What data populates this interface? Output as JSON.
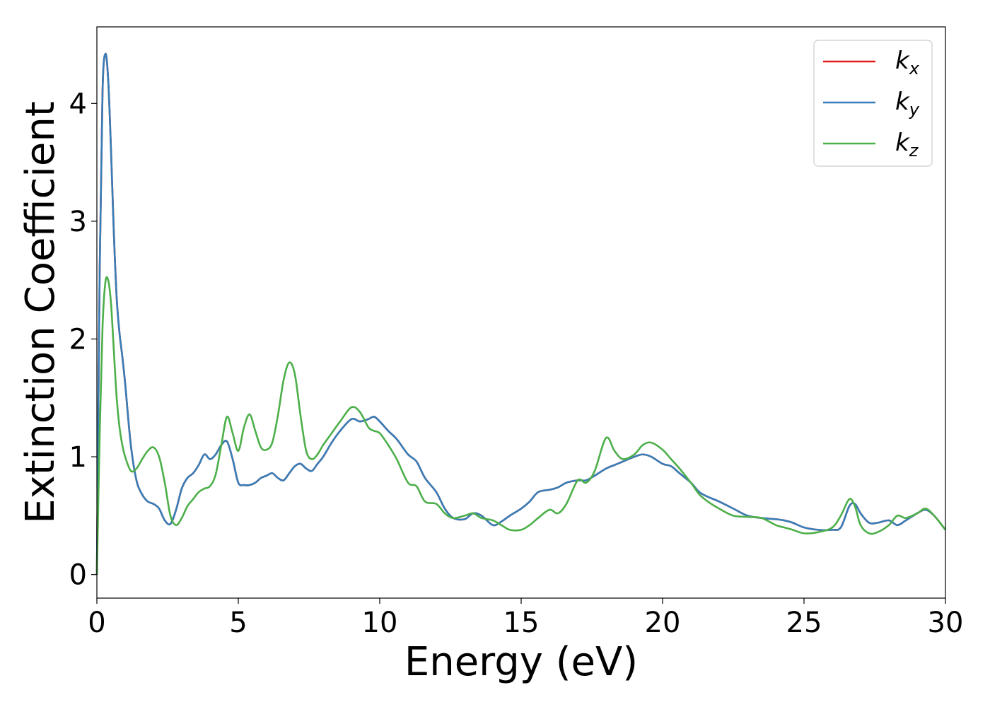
{
  "chart_data": {
    "type": "line",
    "xlabel": "Energy (eV)",
    "ylabel": "Extinction Coefficient",
    "xlim": [
      0,
      30
    ],
    "ylim": [
      -0.2,
      4.65
    ],
    "xticks": [
      "0",
      "5",
      "10",
      "15",
      "20",
      "25",
      "30"
    ],
    "yticks": [
      "0",
      "1",
      "2",
      "3",
      "4"
    ],
    "grid": false,
    "legend_position": "top-right",
    "series": [
      {
        "name": "k",
        "subscript": "x",
        "color": "#e41a1c",
        "x": [
          0,
          0.1,
          0.2,
          0.3,
          0.4,
          0.5,
          0.6,
          0.7,
          0.8,
          0.9,
          1.0,
          1.2,
          1.4,
          1.6,
          1.8,
          2.0,
          2.2,
          2.4,
          2.6,
          2.8,
          3.0,
          3.2,
          3.4,
          3.6,
          3.8,
          4.0,
          4.2,
          4.4,
          4.6,
          4.8,
          5.0,
          5.2,
          5.4,
          5.6,
          5.8,
          6.0,
          6.2,
          6.4,
          6.6,
          6.8,
          7.0,
          7.2,
          7.4,
          7.6,
          7.8,
          8.0,
          8.3,
          8.6,
          9.0,
          9.3,
          9.6,
          9.8,
          10.0,
          10.3,
          10.6,
          11.0,
          11.3,
          11.6,
          12.0,
          12.3,
          12.6,
          13.0,
          13.3,
          13.6,
          14.0,
          14.3,
          14.6,
          15.0,
          15.3,
          15.6,
          16.0,
          16.3,
          16.6,
          17.0,
          17.3,
          17.6,
          18.0,
          18.3,
          18.6,
          19.0,
          19.3,
          19.6,
          20.0,
          20.3,
          20.6,
          21.0,
          21.3,
          21.6,
          22.0,
          22.5,
          23.0,
          23.5,
          24.0,
          24.3,
          24.6,
          25.0,
          25.5,
          26.0,
          26.3,
          26.6,
          26.8,
          27.0,
          27.3,
          27.6,
          28.0,
          28.3,
          28.6,
          29.0,
          29.3,
          29.6,
          30.0
        ],
        "y": [
          0.0,
          2.6,
          4.1,
          4.42,
          4.2,
          3.6,
          2.9,
          2.35,
          2.05,
          1.85,
          1.62,
          1.1,
          0.8,
          0.68,
          0.62,
          0.6,
          0.56,
          0.46,
          0.43,
          0.55,
          0.73,
          0.82,
          0.86,
          0.93,
          1.02,
          0.98,
          1.02,
          1.1,
          1.13,
          0.98,
          0.78,
          0.76,
          0.76,
          0.78,
          0.82,
          0.84,
          0.86,
          0.82,
          0.8,
          0.86,
          0.92,
          0.94,
          0.9,
          0.88,
          0.94,
          1.0,
          1.12,
          1.22,
          1.32,
          1.3,
          1.32,
          1.34,
          1.3,
          1.22,
          1.15,
          1.02,
          0.96,
          0.82,
          0.7,
          0.56,
          0.48,
          0.47,
          0.52,
          0.5,
          0.42,
          0.45,
          0.5,
          0.56,
          0.62,
          0.7,
          0.72,
          0.74,
          0.78,
          0.8,
          0.8,
          0.84,
          0.9,
          0.93,
          0.96,
          1.0,
          1.02,
          1.0,
          0.94,
          0.92,
          0.86,
          0.78,
          0.7,
          0.66,
          0.62,
          0.56,
          0.5,
          0.48,
          0.47,
          0.46,
          0.44,
          0.4,
          0.38,
          0.38,
          0.4,
          0.58,
          0.6,
          0.52,
          0.44,
          0.44,
          0.46,
          0.42,
          0.46,
          0.52,
          0.55,
          0.5,
          0.38
        ]
      },
      {
        "name": "k",
        "subscript": "y",
        "color": "#377eb8",
        "x": [
          0,
          0.1,
          0.2,
          0.3,
          0.4,
          0.5,
          0.6,
          0.7,
          0.8,
          0.9,
          1.0,
          1.2,
          1.4,
          1.6,
          1.8,
          2.0,
          2.2,
          2.4,
          2.6,
          2.8,
          3.0,
          3.2,
          3.4,
          3.6,
          3.8,
          4.0,
          4.2,
          4.4,
          4.6,
          4.8,
          5.0,
          5.2,
          5.4,
          5.6,
          5.8,
          6.0,
          6.2,
          6.4,
          6.6,
          6.8,
          7.0,
          7.2,
          7.4,
          7.6,
          7.8,
          8.0,
          8.3,
          8.6,
          9.0,
          9.3,
          9.6,
          9.8,
          10.0,
          10.3,
          10.6,
          11.0,
          11.3,
          11.6,
          12.0,
          12.3,
          12.6,
          13.0,
          13.3,
          13.6,
          14.0,
          14.3,
          14.6,
          15.0,
          15.3,
          15.6,
          16.0,
          16.3,
          16.6,
          17.0,
          17.3,
          17.6,
          18.0,
          18.3,
          18.6,
          19.0,
          19.3,
          19.6,
          20.0,
          20.3,
          20.6,
          21.0,
          21.3,
          21.6,
          22.0,
          22.5,
          23.0,
          23.5,
          24.0,
          24.3,
          24.6,
          25.0,
          25.5,
          26.0,
          26.3,
          26.6,
          26.8,
          27.0,
          27.3,
          27.6,
          28.0,
          28.3,
          28.6,
          29.0,
          29.3,
          29.6,
          30.0
        ],
        "y": [
          0.0,
          2.6,
          4.1,
          4.42,
          4.2,
          3.6,
          2.9,
          2.35,
          2.05,
          1.85,
          1.62,
          1.1,
          0.8,
          0.68,
          0.62,
          0.6,
          0.56,
          0.46,
          0.43,
          0.55,
          0.73,
          0.82,
          0.86,
          0.93,
          1.02,
          0.98,
          1.02,
          1.1,
          1.13,
          0.98,
          0.78,
          0.76,
          0.76,
          0.78,
          0.82,
          0.84,
          0.86,
          0.82,
          0.8,
          0.86,
          0.92,
          0.94,
          0.9,
          0.88,
          0.94,
          1.0,
          1.12,
          1.22,
          1.32,
          1.3,
          1.32,
          1.34,
          1.3,
          1.22,
          1.15,
          1.02,
          0.96,
          0.82,
          0.7,
          0.56,
          0.48,
          0.47,
          0.52,
          0.5,
          0.42,
          0.45,
          0.5,
          0.56,
          0.62,
          0.7,
          0.72,
          0.74,
          0.78,
          0.8,
          0.8,
          0.84,
          0.9,
          0.93,
          0.96,
          1.0,
          1.02,
          1.0,
          0.94,
          0.92,
          0.86,
          0.78,
          0.7,
          0.66,
          0.62,
          0.56,
          0.5,
          0.48,
          0.47,
          0.46,
          0.44,
          0.4,
          0.38,
          0.38,
          0.4,
          0.58,
          0.6,
          0.52,
          0.44,
          0.44,
          0.46,
          0.42,
          0.46,
          0.52,
          0.55,
          0.5,
          0.38
        ]
      },
      {
        "name": "k",
        "subscript": "z",
        "color": "#4daf4a",
        "x": [
          0,
          0.1,
          0.2,
          0.3,
          0.4,
          0.5,
          0.6,
          0.7,
          0.8,
          0.9,
          1.0,
          1.2,
          1.4,
          1.6,
          1.8,
          2.0,
          2.2,
          2.4,
          2.6,
          2.8,
          3.0,
          3.2,
          3.4,
          3.6,
          3.8,
          4.0,
          4.2,
          4.4,
          4.6,
          4.8,
          5.0,
          5.2,
          5.4,
          5.6,
          5.8,
          6.0,
          6.2,
          6.4,
          6.6,
          6.8,
          7.0,
          7.2,
          7.4,
          7.6,
          7.8,
          8.0,
          8.3,
          8.6,
          9.0,
          9.3,
          9.6,
          9.8,
          10.0,
          10.3,
          10.6,
          11.0,
          11.3,
          11.6,
          12.0,
          12.3,
          12.6,
          13.0,
          13.3,
          13.6,
          14.0,
          14.3,
          14.6,
          15.0,
          15.3,
          15.6,
          16.0,
          16.3,
          16.6,
          17.0,
          17.3,
          17.6,
          18.0,
          18.3,
          18.6,
          19.0,
          19.3,
          19.6,
          20.0,
          20.3,
          20.6,
          21.0,
          21.3,
          21.6,
          22.0,
          22.5,
          23.0,
          23.5,
          24.0,
          24.3,
          24.6,
          25.0,
          25.5,
          26.0,
          26.3,
          26.6,
          26.8,
          27.0,
          27.3,
          27.6,
          28.0,
          28.3,
          28.6,
          29.0,
          29.3,
          29.6,
          30.0
        ],
        "y": [
          0.0,
          1.2,
          2.1,
          2.48,
          2.5,
          2.3,
          1.9,
          1.5,
          1.25,
          1.1,
          1.0,
          0.88,
          0.9,
          0.98,
          1.05,
          1.08,
          1.0,
          0.78,
          0.5,
          0.42,
          0.48,
          0.58,
          0.64,
          0.7,
          0.73,
          0.75,
          0.85,
          1.1,
          1.34,
          1.2,
          1.05,
          1.25,
          1.36,
          1.22,
          1.08,
          1.06,
          1.12,
          1.35,
          1.65,
          1.8,
          1.7,
          1.35,
          1.05,
          0.98,
          1.02,
          1.1,
          1.2,
          1.3,
          1.42,
          1.38,
          1.25,
          1.22,
          1.2,
          1.1,
          0.98,
          0.78,
          0.75,
          0.62,
          0.6,
          0.52,
          0.48,
          0.5,
          0.52,
          0.48,
          0.46,
          0.42,
          0.38,
          0.38,
          0.42,
          0.48,
          0.55,
          0.52,
          0.6,
          0.8,
          0.78,
          0.88,
          1.16,
          1.05,
          0.98,
          1.02,
          1.1,
          1.12,
          1.06,
          0.98,
          0.9,
          0.78,
          0.68,
          0.62,
          0.56,
          0.5,
          0.49,
          0.48,
          0.42,
          0.4,
          0.38,
          0.35,
          0.36,
          0.4,
          0.5,
          0.64,
          0.58,
          0.42,
          0.35,
          0.36,
          0.42,
          0.5,
          0.48,
          0.52,
          0.56,
          0.5,
          0.38
        ]
      }
    ]
  }
}
